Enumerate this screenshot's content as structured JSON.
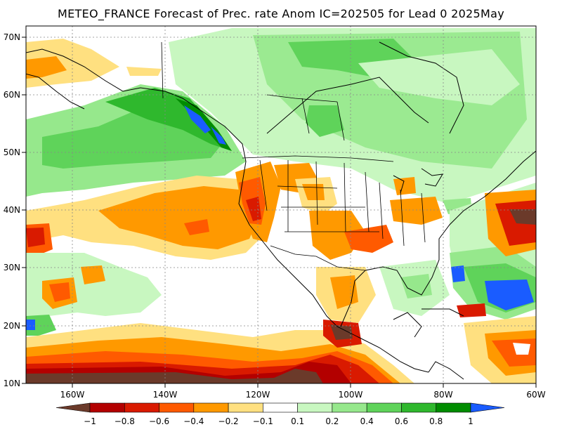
{
  "title": "METEO_FRANCE Forecast of Prec. rate Anom IC=202505 for Lead 0 2025May",
  "map": {
    "lat_labels": [
      "70N",
      "60N",
      "50N",
      "40N",
      "30N",
      "20N",
      "10N"
    ],
    "lon_labels": [
      "160W",
      "140W",
      "120W",
      "100W",
      "80W",
      "60W"
    ],
    "extent": {
      "lon": [
        -170,
        -60
      ],
      "lat": [
        10,
        72
      ]
    }
  },
  "legend": {
    "labels": [
      "−1",
      "−0.8",
      "−0.6",
      "−0.4",
      "−0.2",
      "−0.1",
      "0.1",
      "0.2",
      "0.4",
      "0.6",
      "0.8",
      "1"
    ],
    "colors": [
      "#6b3a2a",
      "#b30000",
      "#d91a00",
      "#ff5a00",
      "#ff9900",
      "#ffe080",
      "#ffffff",
      "#c8f7c0",
      "#96e88c",
      "#5fd35a",
      "#2fb82d",
      "#008c00",
      "#1a5cff"
    ]
  }
}
